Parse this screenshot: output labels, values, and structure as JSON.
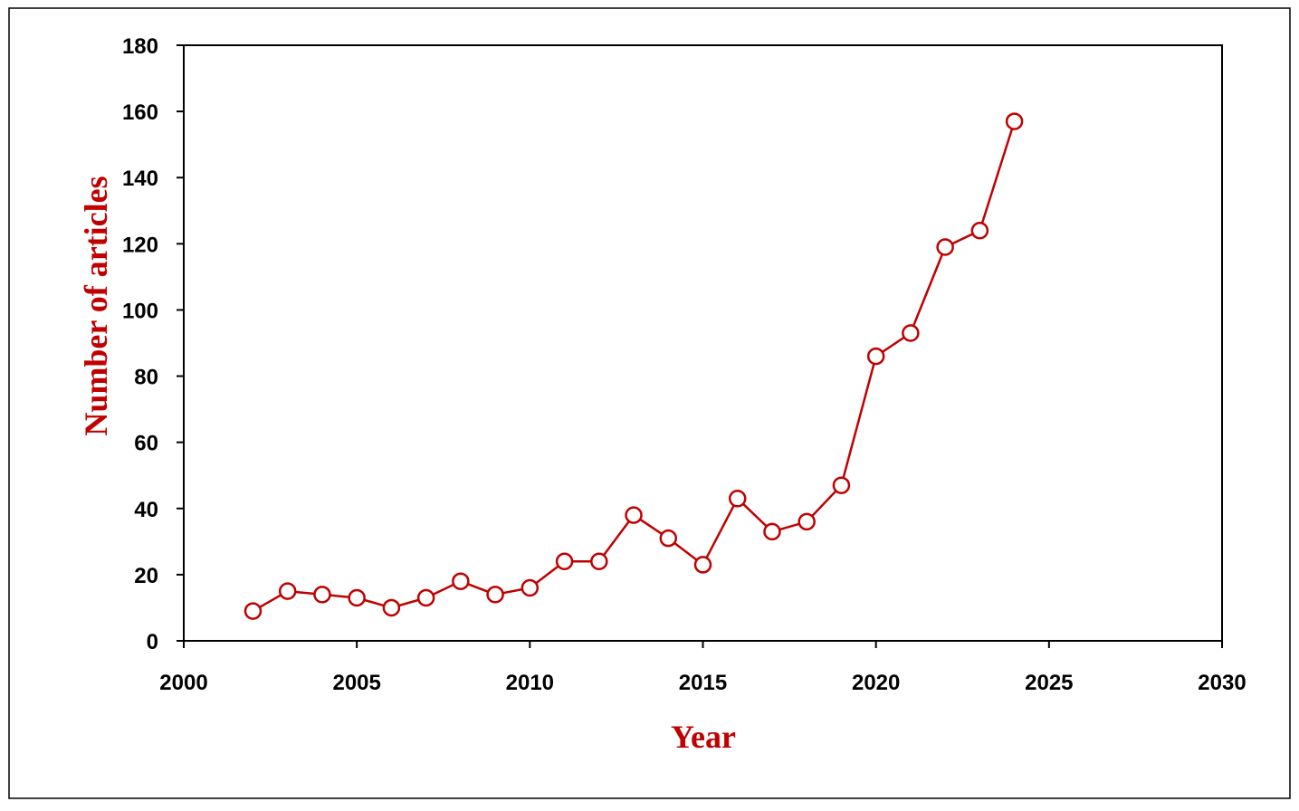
{
  "chart_data": {
    "type": "line",
    "xlabel": "Year",
    "ylabel": "Number of articles",
    "xlim": [
      2000,
      2030
    ],
    "ylim": [
      0,
      180
    ],
    "xticks": [
      "2000",
      "2005",
      "2010",
      "2015",
      "2020",
      "2025",
      "2030"
    ],
    "yticks": [
      "0",
      "20",
      "40",
      "60",
      "80",
      "100",
      "120",
      "140",
      "160",
      "180"
    ],
    "grid": false,
    "legend": "none",
    "series": [
      {
        "marker": "open-circle",
        "color": "#c00000",
        "x": [
          2002,
          2003,
          2004,
          2005,
          2006,
          2007,
          2008,
          2009,
          2010,
          2011,
          2012,
          2013,
          2014,
          2015,
          2016,
          2017,
          2018,
          2019,
          2020,
          2021,
          2022,
          2023,
          2024
        ],
        "values": [
          9,
          15,
          14,
          13,
          10,
          13,
          18,
          14,
          16,
          24,
          24,
          38,
          31,
          23,
          43,
          33,
          36,
          47,
          86,
          93,
          119,
          124,
          157
        ]
      }
    ],
    "colors": {
      "axis_title": "#c00000",
      "line": "#c00000",
      "axes": "#000000"
    }
  }
}
